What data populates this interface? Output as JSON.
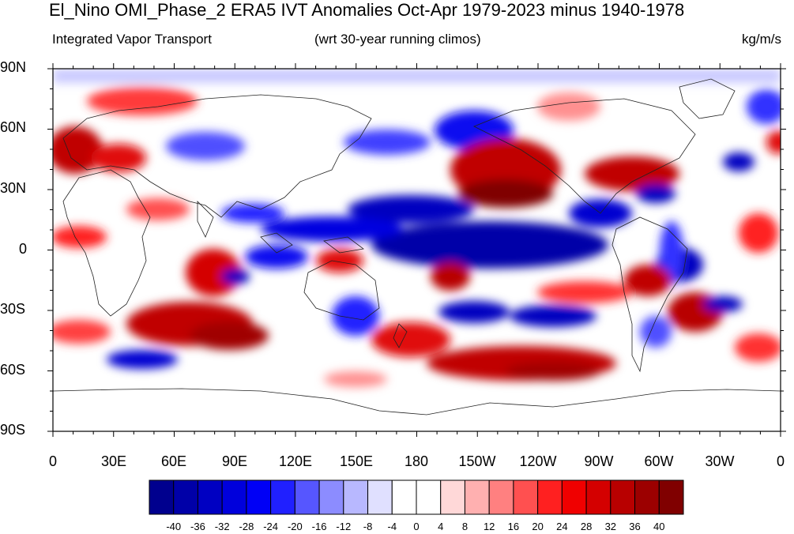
{
  "title": "El_Nino OMI_Phase_2 ERA5 IVT Anomalies Oct-Apr 1979-2023 minus 1940-1978",
  "subtitle_left": "Integrated Vapor Transport",
  "subtitle_center": "(wrt 30-year running climos)",
  "units": "kg/m/s",
  "lat_labels": [
    "90N",
    "60N",
    "30N",
    "0",
    "30S",
    "60S",
    "90S"
  ],
  "lon_labels": [
    "0",
    "30E",
    "60E",
    "90E",
    "120E",
    "150E",
    "180",
    "150W",
    "120W",
    "90W",
    "60W",
    "30W",
    "0"
  ],
  "colorbar": {
    "labels": [
      "-40",
      "-36",
      "-32",
      "-28",
      "-24",
      "-20",
      "-16",
      "-12",
      "-8",
      "-4",
      "0",
      "4",
      "8",
      "12",
      "16",
      "20",
      "24",
      "28",
      "32",
      "36",
      "40"
    ],
    "colors": [
      "#00008e",
      "#0000a8",
      "#0000c2",
      "#0000dc",
      "#0000f6",
      "#2020ff",
      "#5656ff",
      "#8c8cff",
      "#b8b8ff",
      "#e0e0ff",
      "#ffffff",
      "#ffffff",
      "#ffd8d8",
      "#ffb0b0",
      "#ff8080",
      "#ff5050",
      "#ff2020",
      "#f00000",
      "#d40000",
      "#b80000",
      "#9c0000",
      "#800000"
    ]
  }
}
